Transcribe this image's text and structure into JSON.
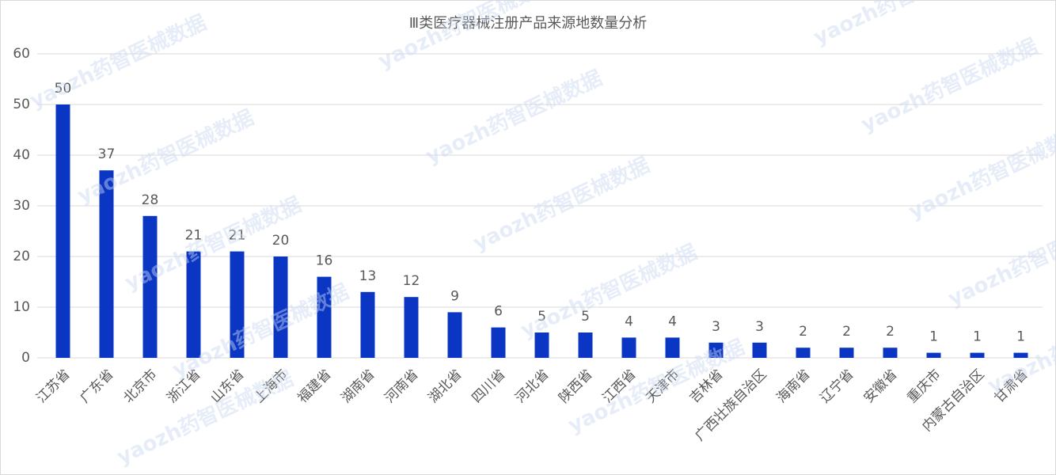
{
  "chart_data": {
    "type": "bar",
    "title": "Ⅲ类医疗器械注册产品来源地数量分析",
    "categories": [
      "江苏省",
      "广东省",
      "北京市",
      "浙江省",
      "山东省",
      "上海市",
      "福建省",
      "湖南省",
      "河南省",
      "湖北省",
      "四川省",
      "河北省",
      "陕西省",
      "江西省",
      "天津市",
      "吉林省",
      "广西壮族自治区",
      "海南省",
      "辽宁省",
      "安徽省",
      "重庆市",
      "内蒙古自治区",
      "甘肃省"
    ],
    "values": [
      50,
      37,
      28,
      21,
      21,
      20,
      16,
      13,
      12,
      9,
      6,
      5,
      5,
      4,
      4,
      3,
      3,
      2,
      2,
      2,
      1,
      1,
      1
    ],
    "color": "#0b36c3",
    "ylim": [
      0,
      60
    ],
    "yticks": [
      0,
      10,
      20,
      30,
      40,
      50,
      60
    ],
    "grid": true,
    "data_labels": true,
    "watermark": "yaozh药智医械数据"
  }
}
